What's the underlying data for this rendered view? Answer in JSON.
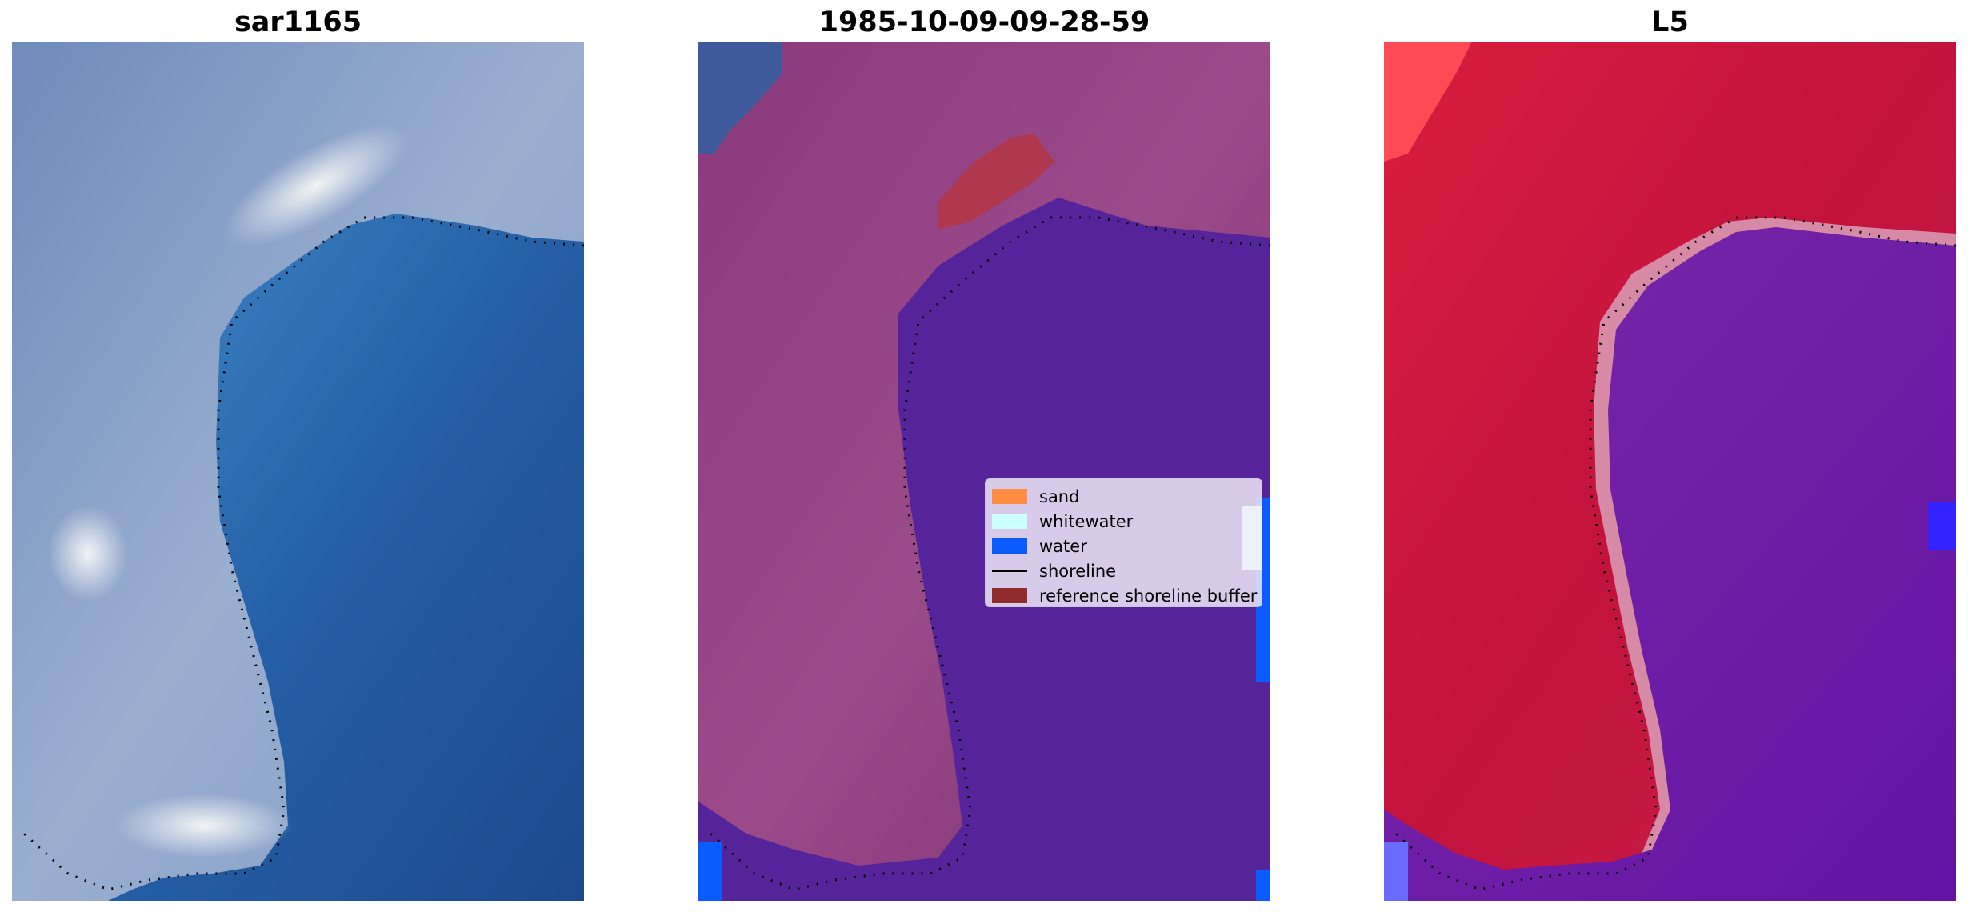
{
  "panels": [
    {
      "title": "sar1165",
      "image": "rgb-satellite-image"
    },
    {
      "title": "1985-10-09-09-28-59",
      "image": "classified-image"
    },
    {
      "title": "L5",
      "image": "water-index-image"
    }
  ],
  "legend": {
    "items": [
      {
        "label": "sand",
        "color": "#ff8c42",
        "kind": "patch"
      },
      {
        "label": "whitewater",
        "color": "#ccffff",
        "kind": "patch"
      },
      {
        "label": "water",
        "color": "#0a5cff",
        "kind": "patch"
      },
      {
        "label": "shoreline",
        "color": "#000000",
        "kind": "line"
      },
      {
        "label": "reference shoreline buffer",
        "color": "#922b2b",
        "kind": "patch"
      }
    ]
  },
  "colors": {
    "land_rgb": "#8fa3c4",
    "water_rgb": "#23579b",
    "land_classified": "#7e2b6e",
    "water_classified": "#55249a",
    "land_index": "#c0143c",
    "water_index": "#6a1aa8",
    "shoreline": "#000000"
  }
}
